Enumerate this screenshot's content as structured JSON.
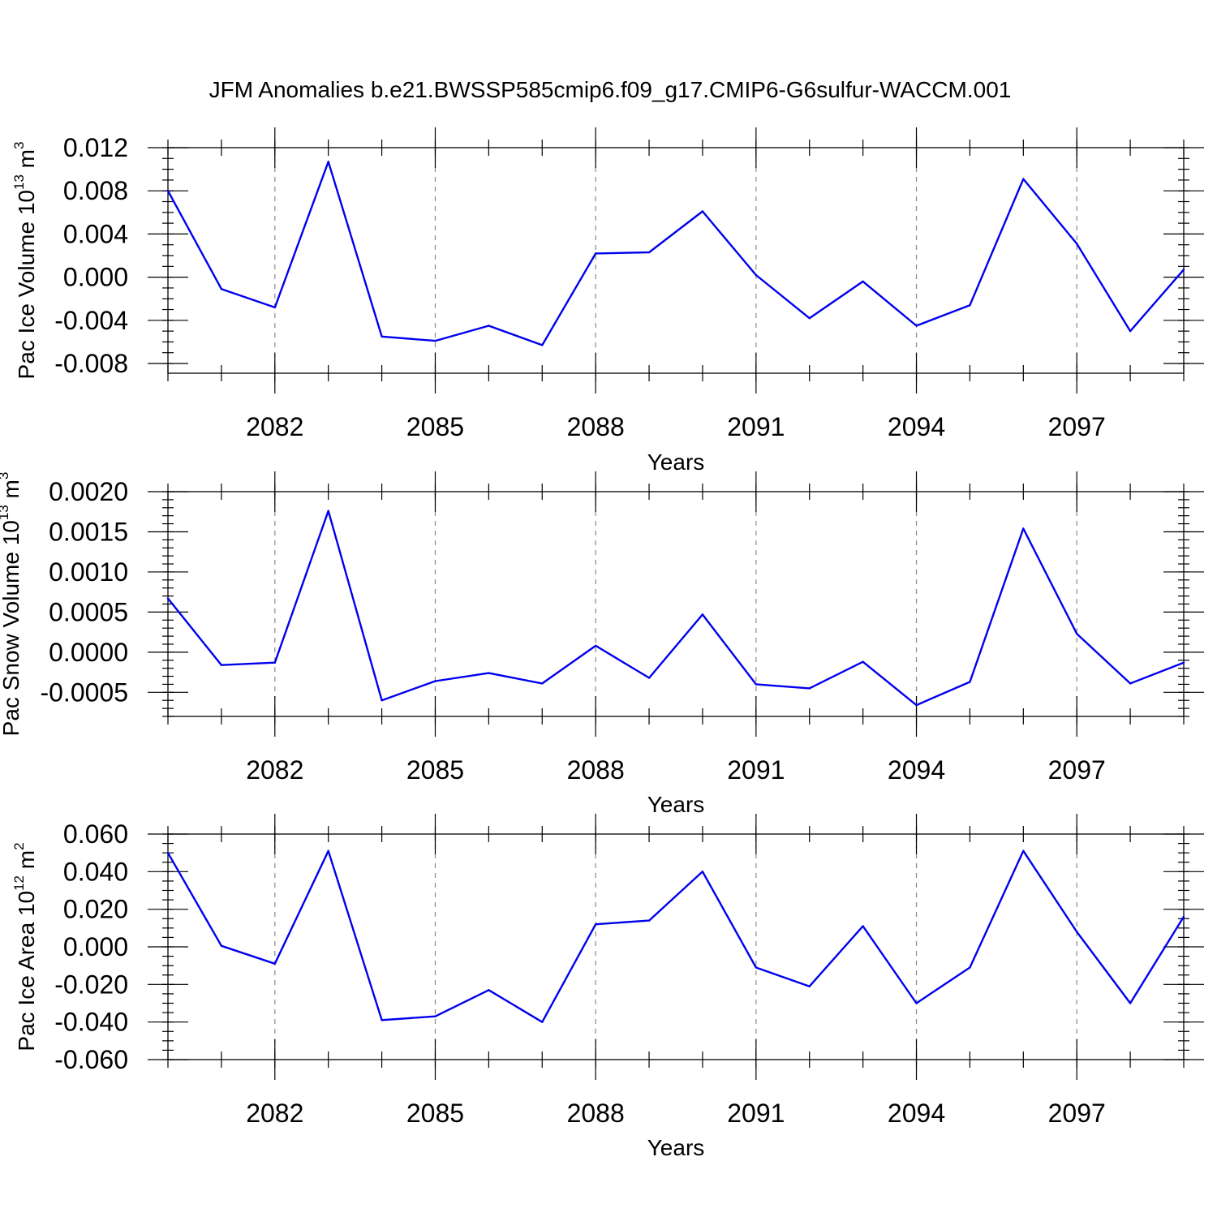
{
  "title": "JFM Anomalies b.e21.BWSSP585cmip6.f09_g17.CMIP6-G6sulfur-WACCM.001",
  "series_color": "#0000ee",
  "chart_data": [
    {
      "type": "line",
      "ylabel": {
        "main": "Pac Ice Volume 10",
        "sup": "13",
        "unit": " m",
        "unit_sup": "3"
      },
      "xlabel": "Years",
      "xlim": [
        2080,
        2099
      ],
      "ylim": [
        -0.0089,
        0.012
      ],
      "yticks": [
        -0.008,
        -0.004,
        0.0,
        0.004,
        0.008,
        0.012
      ],
      "ytick_labels": [
        "-0.008",
        "-0.004",
        "0.000",
        "0.004",
        "0.008",
        "0.012"
      ],
      "yminor_step": 0.001,
      "xticks": [
        2082,
        2085,
        2088,
        2091,
        2094,
        2097
      ],
      "xtick_labels": [
        "2082",
        "2085",
        "2088",
        "2091",
        "2094",
        "2097"
      ],
      "grid": "vertical dashed at major x ticks",
      "x": [
        2080,
        2081,
        2082,
        2083,
        2084,
        2085,
        2086,
        2087,
        2088,
        2089,
        2090,
        2091,
        2092,
        2093,
        2094,
        2095,
        2096,
        2097,
        2098,
        2099
      ],
      "values": [
        0.008,
        -0.0011,
        -0.0028,
        0.0107,
        -0.0055,
        -0.0059,
        -0.0045,
        -0.0063,
        0.0022,
        0.0023,
        0.0061,
        0.0002,
        -0.0038,
        -0.0004,
        -0.0045,
        -0.0026,
        0.0091,
        0.0031,
        -0.005,
        0.0007
      ]
    },
    {
      "type": "line",
      "ylabel": {
        "main": "Pac Snow Volume 10",
        "sup": "13",
        "unit": " m",
        "unit_sup": "3"
      },
      "xlabel": "Years",
      "xlim": [
        2080,
        2099
      ],
      "ylim": [
        -0.0008,
        0.002
      ],
      "yticks": [
        -0.0005,
        0.0,
        0.0005,
        0.001,
        0.0015,
        0.002
      ],
      "ytick_labels": [
        "-0.0005",
        "0.0000",
        "0.0005",
        "0.0010",
        "0.0015",
        "0.0020"
      ],
      "yminor_step": 0.0001,
      "xticks": [
        2082,
        2085,
        2088,
        2091,
        2094,
        2097
      ],
      "xtick_labels": [
        "2082",
        "2085",
        "2088",
        "2091",
        "2094",
        "2097"
      ],
      "grid": "vertical dashed at major x ticks",
      "x": [
        2080,
        2081,
        2082,
        2083,
        2084,
        2085,
        2086,
        2087,
        2088,
        2089,
        2090,
        2091,
        2092,
        2093,
        2094,
        2095,
        2096,
        2097,
        2098,
        2099
      ],
      "values": [
        0.00067,
        -0.00016,
        -0.00013,
        0.00176,
        -0.0006,
        -0.00036,
        -0.00026,
        -0.00039,
        8e-05,
        -0.00032,
        0.00047,
        -0.0004,
        -0.00045,
        -0.00012,
        -0.00066,
        -0.00037,
        0.00154,
        0.00023,
        -0.00039,
        -0.00013
      ]
    },
    {
      "type": "line",
      "ylabel": {
        "main": "Pac Ice Area 10",
        "sup": "12",
        "unit": " m",
        "unit_sup": "2"
      },
      "xlabel": "Years",
      "xlim": [
        2080,
        2099
      ],
      "ylim": [
        -0.06,
        0.06
      ],
      "yticks": [
        -0.06,
        -0.04,
        -0.02,
        0.0,
        0.02,
        0.04,
        0.06
      ],
      "ytick_labels": [
        "-0.060",
        "-0.040",
        "-0.020",
        "0.000",
        "0.020",
        "0.040",
        "0.060"
      ],
      "yminor_step": 0.005,
      "xticks": [
        2082,
        2085,
        2088,
        2091,
        2094,
        2097
      ],
      "xtick_labels": [
        "2082",
        "2085",
        "2088",
        "2091",
        "2094",
        "2097"
      ],
      "grid": "vertical dashed at major x ticks",
      "x": [
        2080,
        2081,
        2082,
        2083,
        2084,
        2085,
        2086,
        2087,
        2088,
        2089,
        2090,
        2091,
        2092,
        2093,
        2094,
        2095,
        2096,
        2097,
        2098,
        2099
      ],
      "values": [
        0.05,
        0.0005,
        -0.009,
        0.051,
        -0.039,
        -0.037,
        -0.023,
        -0.04,
        0.012,
        0.014,
        0.04,
        -0.011,
        -0.021,
        0.011,
        -0.03,
        -0.011,
        0.051,
        0.008,
        -0.03,
        0.016
      ]
    }
  ]
}
